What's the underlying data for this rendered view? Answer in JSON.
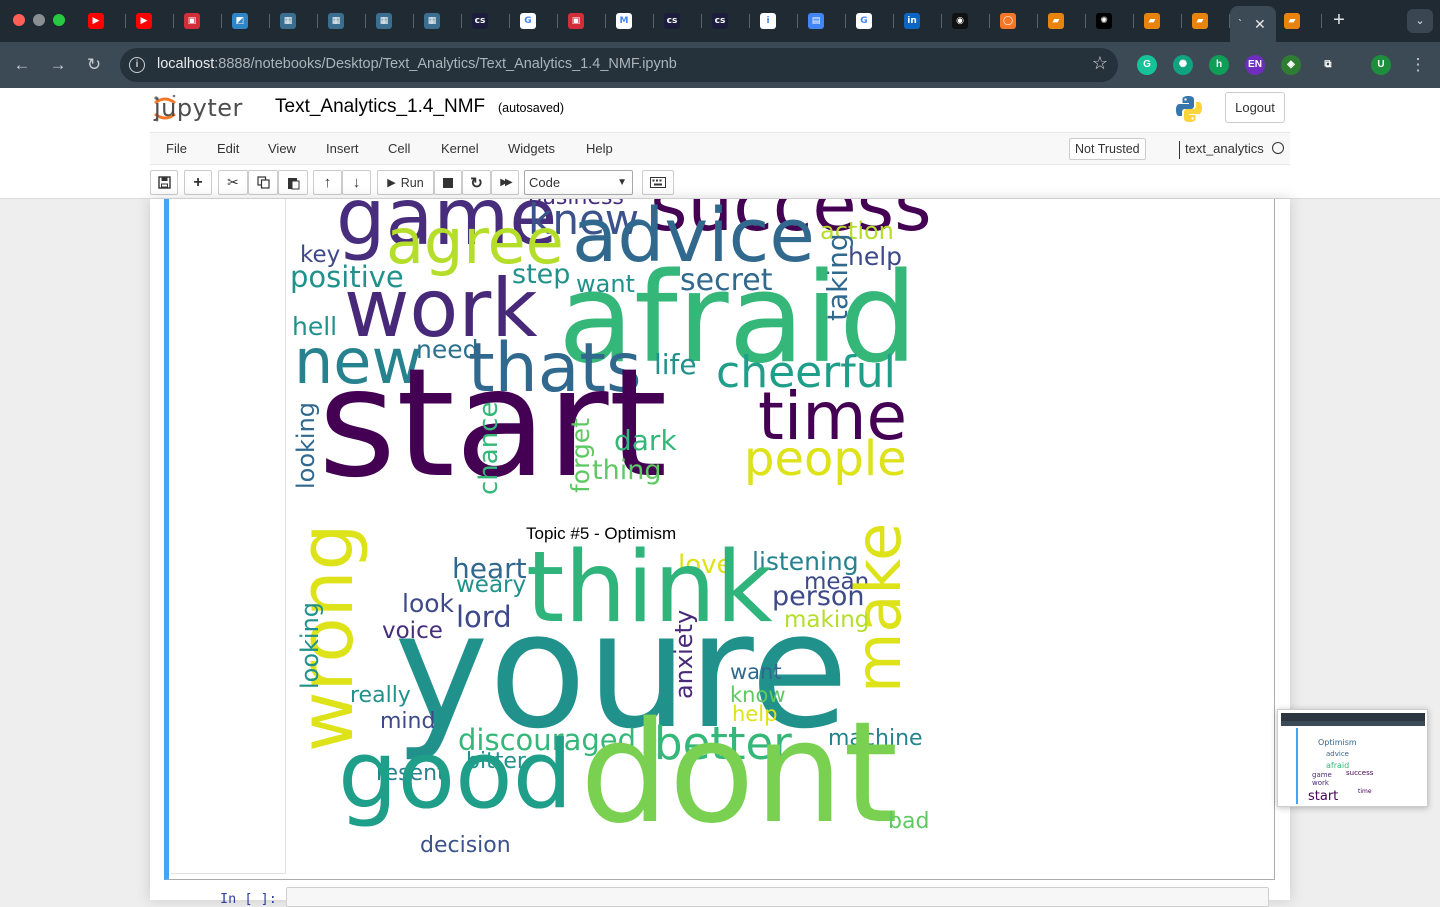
{
  "browser": {
    "tabs": [
      {
        "icon": "youtube-icon",
        "color": "#ff0000",
        "glyph": "▶"
      },
      {
        "icon": "youtube-icon",
        "color": "#ff0000",
        "glyph": "▶"
      },
      {
        "icon": "pdf-icon",
        "color": "#d12e3a",
        "glyph": "▣"
      },
      {
        "icon": "photo-icon",
        "color": "#2f86c9",
        "glyph": "◩"
      },
      {
        "icon": "grid-icon",
        "color": "#3a6f8f",
        "glyph": "▦"
      },
      {
        "icon": "grid-icon",
        "color": "#3a6f8f",
        "glyph": "▦"
      },
      {
        "icon": "grid-icon",
        "color": "#3a6f8f",
        "glyph": "▦"
      },
      {
        "icon": "grid-icon",
        "color": "#3a6f8f",
        "glyph": "▦"
      },
      {
        "icon": "cs-icon",
        "color": "#1c1c3c",
        "glyph": "cs"
      },
      {
        "icon": "google-icon",
        "color": "#ffffff",
        "glyph": "G"
      },
      {
        "icon": "pdf-icon",
        "color": "#d12e3a",
        "glyph": "▣"
      },
      {
        "icon": "gmail-icon",
        "color": "#ffffff",
        "glyph": "M"
      },
      {
        "icon": "cs-icon",
        "color": "#1c1c3c",
        "glyph": "cs"
      },
      {
        "icon": "cs-icon",
        "color": "#1c1c3c",
        "glyph": "cs"
      },
      {
        "icon": "info-icon",
        "color": "#ffffff",
        "glyph": "i"
      },
      {
        "icon": "calendar-icon",
        "color": "#4285f4",
        "glyph": "▤"
      },
      {
        "icon": "google-icon",
        "color": "#ffffff",
        "glyph": "G"
      },
      {
        "icon": "linkedin-icon",
        "color": "#0a66c2",
        "glyph": "in"
      },
      {
        "icon": "github-icon",
        "color": "#111111",
        "glyph": "◉"
      },
      {
        "icon": "jupyter-icon",
        "color": "#f37726",
        "glyph": "◯"
      },
      {
        "icon": "book-icon",
        "color": "#e8830c",
        "glyph": "▰"
      },
      {
        "icon": "openai-icon",
        "color": "#000000",
        "glyph": "✺"
      },
      {
        "icon": "book-icon",
        "color": "#e8830c",
        "glyph": "▰"
      },
      {
        "icon": "book-icon",
        "color": "#e8830c",
        "glyph": "▰"
      },
      {
        "icon": "book-icon",
        "color": "#e8830c",
        "glyph": "▰"
      }
    ],
    "url_host": "localhost",
    "url_rest": ":8888/notebooks/Desktop/Text_Analytics/Text_Analytics_1.4_NMF.ipynb",
    "extensions": [
      {
        "icon": "grammarly-icon",
        "color": "#15c39a",
        "glyph": "G"
      },
      {
        "icon": "chatgpt-icon",
        "color": "#10a37f",
        "glyph": "✺"
      },
      {
        "icon": "hypothesis-icon",
        "color": "#0f9d58",
        "glyph": "h"
      },
      {
        "icon": "language-icon",
        "color": "#6f2dbd",
        "glyph": "EN"
      },
      {
        "icon": "game-icon",
        "color": "#2e7d32",
        "glyph": "◈"
      },
      {
        "icon": "puzzle-icon",
        "color": "#3c4a55",
        "glyph": "⧉"
      },
      {
        "icon": "profile-icon",
        "color": "#1e8e3e",
        "glyph": "U"
      }
    ]
  },
  "jupyter": {
    "logo_text": "jupyter",
    "notebook_name": "Text_Analytics_1.4_NMF",
    "autosave_status": "(autosaved)",
    "logout_label": "Logout",
    "menu": [
      "File",
      "Edit",
      "View",
      "Insert",
      "Cell",
      "Kernel",
      "Widgets",
      "Help"
    ],
    "trust_label": "Not Trusted",
    "kernel_name": "text_analytics",
    "run_label": "Run",
    "cell_type": "Code",
    "next_prompt": "In [ ]:"
  },
  "output": {
    "topic5_title": "Topic #5 - Optimism",
    "cloud4_words": [
      {
        "t": "game",
        "c": "#472d7b"
      },
      {
        "t": "business",
        "c": "#472d7b"
      },
      {
        "t": "success",
        "c": "#440154"
      },
      {
        "t": "knew",
        "c": "#3b528b"
      },
      {
        "t": "agree",
        "c": "#b5de2b"
      },
      {
        "t": "advice",
        "c": "#31688e"
      },
      {
        "t": "action",
        "c": "#b5de2b"
      },
      {
        "t": "help",
        "c": "#3e4989"
      },
      {
        "t": "key",
        "c": "#3e4989"
      },
      {
        "t": "positive",
        "c": "#21918c"
      },
      {
        "t": "step",
        "c": "#21918c"
      },
      {
        "t": "want",
        "c": "#21918c"
      },
      {
        "t": "secret",
        "c": "#31688e"
      },
      {
        "t": "taking",
        "c": "#31688e"
      },
      {
        "t": "work",
        "c": "#482878"
      },
      {
        "t": "afraid",
        "c": "#35b779"
      },
      {
        "t": "hell",
        "c": "#21918c"
      },
      {
        "t": "need",
        "c": "#2c728e"
      },
      {
        "t": "new",
        "c": "#26828e"
      },
      {
        "t": "thats",
        "c": "#31688e"
      },
      {
        "t": "life",
        "c": "#21918c"
      },
      {
        "t": "cheerful",
        "c": "#1f9e89"
      },
      {
        "t": "looking",
        "c": "#31688e"
      },
      {
        "t": "start",
        "c": "#440154"
      },
      {
        "t": "chance",
        "c": "#35b779"
      },
      {
        "t": "forget",
        "c": "#5ec962"
      },
      {
        "t": "dark",
        "c": "#35b779"
      },
      {
        "t": "time",
        "c": "#440154"
      },
      {
        "t": "thing",
        "c": "#5ec962"
      },
      {
        "t": "people",
        "c": "#dde318"
      }
    ],
    "cloud5_words": [
      {
        "t": "heart",
        "c": "#31688e"
      },
      {
        "t": "love",
        "c": "#dde318"
      },
      {
        "t": "listening",
        "c": "#26828e"
      },
      {
        "t": "weary",
        "c": "#21918c"
      },
      {
        "t": "mean",
        "c": "#3e4989"
      },
      {
        "t": "wrong",
        "c": "#dde318"
      },
      {
        "t": "think",
        "c": "#2fb47c"
      },
      {
        "t": "make",
        "c": "#dde318"
      },
      {
        "t": "person",
        "c": "#3e4989"
      },
      {
        "t": "look",
        "c": "#3e4989"
      },
      {
        "t": "looking",
        "c": "#21918c"
      },
      {
        "t": "voice",
        "c": "#472d7b"
      },
      {
        "t": "lord",
        "c": "#3e4989"
      },
      {
        "t": "making",
        "c": "#b5de2b"
      },
      {
        "t": "youre",
        "c": "#21918c"
      },
      {
        "t": "anxiety",
        "c": "#482878"
      },
      {
        "t": "want",
        "c": "#31688e"
      },
      {
        "t": "really",
        "c": "#21918c"
      },
      {
        "t": "know",
        "c": "#5ec962"
      },
      {
        "t": "help",
        "c": "#dde318"
      },
      {
        "t": "mind",
        "c": "#3e4989"
      },
      {
        "t": "discouraged",
        "c": "#35b779"
      },
      {
        "t": "better",
        "c": "#35b779"
      },
      {
        "t": "machine",
        "c": "#26828e"
      },
      {
        "t": "resent",
        "c": "#26828e"
      },
      {
        "t": "bitter",
        "c": "#21918c"
      },
      {
        "t": "good",
        "c": "#1f9e89"
      },
      {
        "t": "dont",
        "c": "#7ad151"
      },
      {
        "t": "bad",
        "c": "#5ec962"
      },
      {
        "t": "decision",
        "c": "#3b528b"
      }
    ]
  },
  "thumbnail": {
    "words": [
      "Optimism",
      "advice",
      "afraid",
      "start",
      "time",
      "work",
      "game",
      "success"
    ]
  }
}
